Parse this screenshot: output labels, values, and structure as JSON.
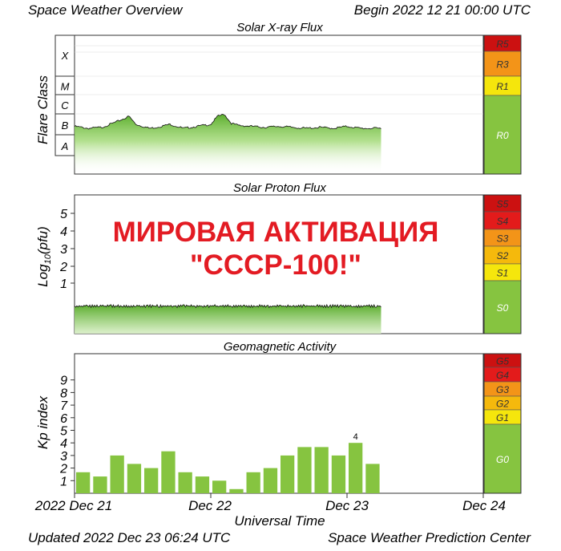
{
  "header": {
    "title": "Space Weather Overview",
    "begin": "Begin 2022 12 21 00:00 UTC"
  },
  "footer": {
    "updated": "Updated 2022 Dec 23 06:24 UTC",
    "center": "Space Weather Prediction Center"
  },
  "overlay": {
    "line1": "МИРОВАЯ АКТИВАЦИЯ",
    "line2": "\"СССР-100!\"",
    "color": "#e31b23"
  },
  "colors": {
    "green": "#86c440",
    "yellow": "#f5e60c",
    "orange": "#f39418",
    "red": "#e31b1b",
    "darkred": "#cc1111",
    "plotBorder": "#333333"
  },
  "x_axis": {
    "label": "Universal Time",
    "ticks": [
      "2022 Dec 21",
      "Dec 22",
      "Dec 23",
      "Dec 24"
    ]
  },
  "scales": {
    "xray": [
      {
        "label": "R5",
        "color": "#cc1111"
      },
      {
        "label": "R3",
        "color": "#f39418"
      },
      {
        "label": "R1",
        "color": "#f5e60c"
      },
      {
        "label": "R0",
        "color": "#86c440"
      }
    ],
    "proton": [
      {
        "label": "S5",
        "color": "#cc1111"
      },
      {
        "label": "S4",
        "color": "#e31b1b"
      },
      {
        "label": "S3",
        "color": "#f39418"
      },
      {
        "label": "S2",
        "color": "#f5b90c"
      },
      {
        "label": "S1",
        "color": "#f5e60c"
      },
      {
        "label": "S0",
        "color": "#86c440"
      }
    ],
    "geomag": [
      {
        "label": "G5",
        "color": "#cc1111"
      },
      {
        "label": "G4",
        "color": "#e31b1b"
      },
      {
        "label": "G3",
        "color": "#f39418"
      },
      {
        "label": "G2",
        "color": "#f5b90c"
      },
      {
        "label": "G1",
        "color": "#f5e60c"
      },
      {
        "label": "G0",
        "color": "#86c440"
      }
    ]
  },
  "chart_data": [
    {
      "type": "area",
      "title": "Solar X-ray Flux",
      "ylabel": "Flare Class",
      "yticks": [
        "A",
        "B",
        "C",
        "M",
        "X"
      ],
      "xlim_days": [
        0,
        3
      ],
      "x_days": [
        0.0,
        0.1,
        0.2,
        0.3,
        0.4,
        0.45,
        0.5,
        0.55,
        0.6,
        0.7,
        0.8,
        0.9,
        1.0,
        1.05,
        1.1,
        1.15,
        1.2,
        1.3,
        1.4,
        1.5,
        1.6,
        1.7,
        1.8,
        1.9,
        2.0,
        2.1,
        2.2,
        2.25
      ],
      "level": [
        2.4,
        2.3,
        2.35,
        2.6,
        2.9,
        2.5,
        2.4,
        2.3,
        2.35,
        2.5,
        2.3,
        2.4,
        2.5,
        2.9,
        3.0,
        2.55,
        2.45,
        2.4,
        2.35,
        2.4,
        2.35,
        2.3,
        2.35,
        2.3,
        2.4,
        2.3,
        2.3,
        2.3
      ]
    },
    {
      "type": "area",
      "title": "Solar Proton Flux",
      "ylabel": "Log10(pfu)",
      "yticks": [
        "1",
        "2",
        "3",
        "4",
        "5"
      ],
      "xlim_days": [
        0,
        3
      ],
      "x_days": [
        0.0,
        0.5,
        1.0,
        1.5,
        2.0,
        2.25
      ],
      "level": [
        -0.3,
        -0.3,
        -0.3,
        -0.3,
        -0.3,
        -0.3
      ]
    },
    {
      "type": "bar",
      "title": "Geomagnetic Activity",
      "ylabel": "Kp index",
      "yticks": [
        "1",
        "2",
        "3",
        "4",
        "5",
        "6",
        "7",
        "8",
        "9"
      ],
      "ylim": [
        0,
        10
      ],
      "xlim_days": [
        0,
        3
      ],
      "interval_hours": 3,
      "values": [
        1.67,
        1.33,
        3.0,
        2.33,
        2.0,
        3.33,
        1.67,
        1.33,
        1.0,
        0.33,
        1.67,
        2.0,
        3.0,
        3.67,
        3.67,
        3.0,
        4.0,
        2.33
      ],
      "annotation": {
        "index": 16,
        "text": "4"
      }
    }
  ]
}
